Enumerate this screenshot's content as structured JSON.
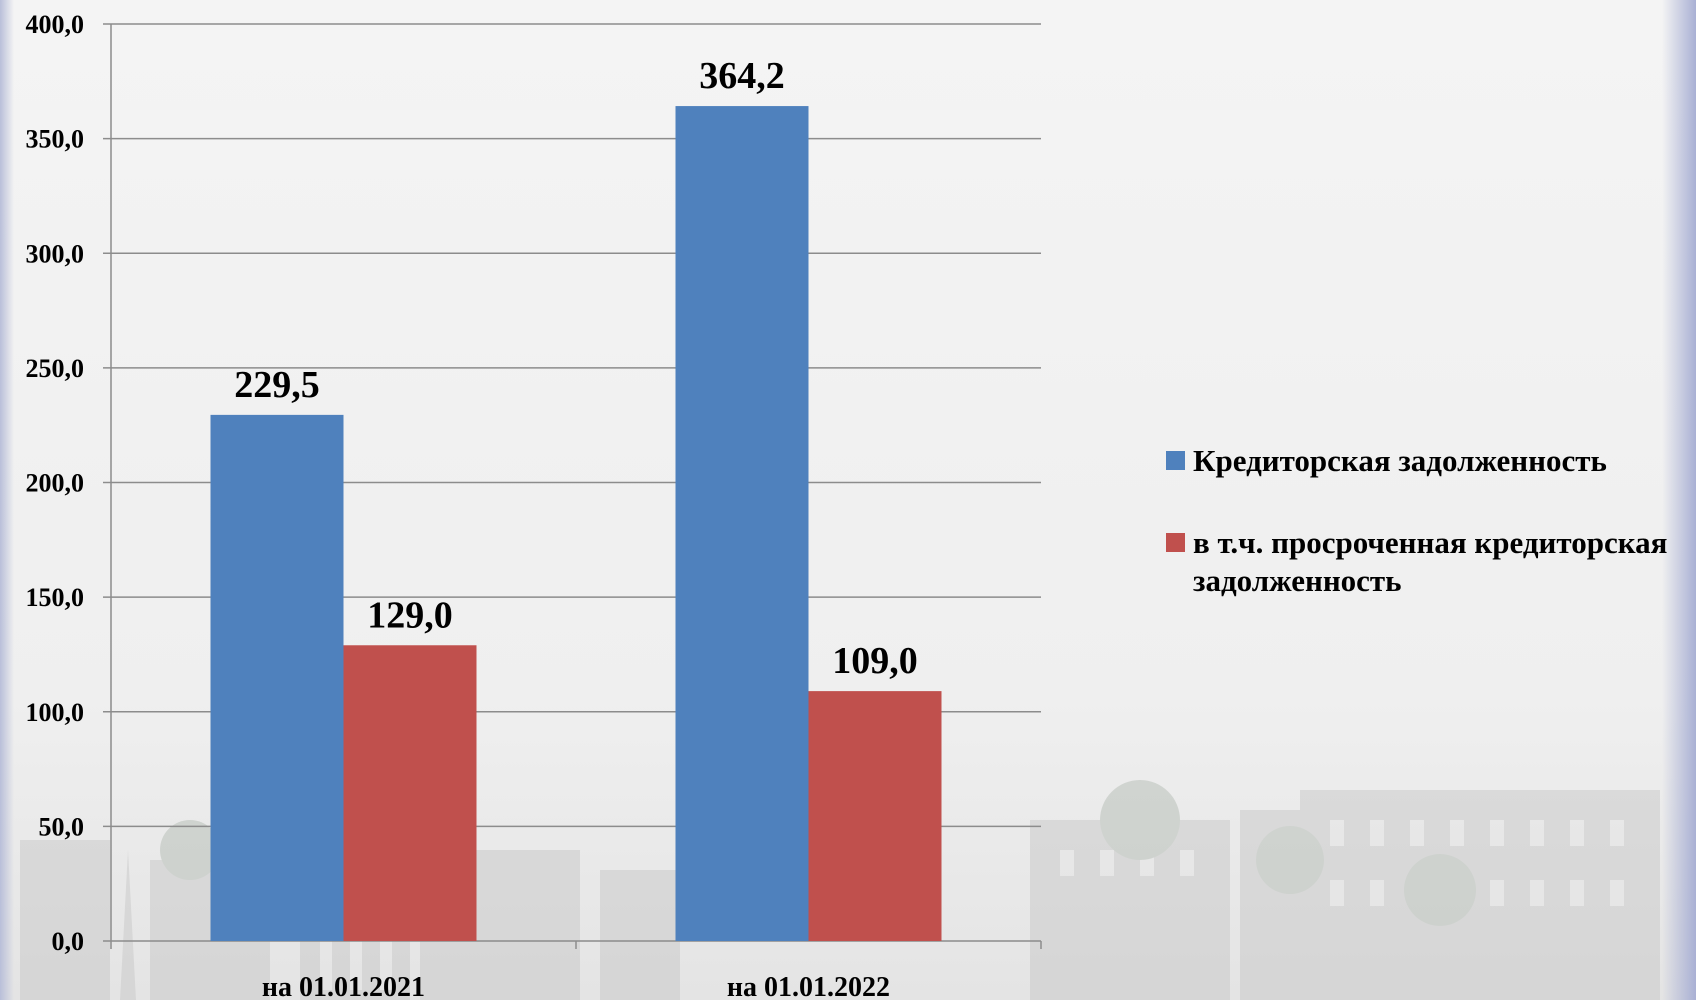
{
  "chart_data": {
    "type": "bar",
    "categories": [
      "на 01.01.2021",
      "на 01.01.2022"
    ],
    "series": [
      {
        "name": "Кредиторская задолженность",
        "values": [
          229.5,
          364.2
        ],
        "color": "#4F81BD",
        "labels": [
          "229,5",
          "364,2"
        ]
      },
      {
        "name": "в т.ч. просроченная кредиторская задолженность",
        "values": [
          129.0,
          109.0
        ],
        "color": "#C0504D",
        "labels": [
          "129,0",
          "109,0"
        ]
      }
    ],
    "ylim": [
      0,
      400
    ],
    "yticks": [
      0,
      50,
      100,
      150,
      200,
      250,
      300,
      350,
      400
    ],
    "ytick_labels": [
      "0,0",
      "50,0",
      "100,0",
      "150,0",
      "200,0",
      "250,0",
      "300,0",
      "350,0",
      "400,0"
    ],
    "grid": true,
    "legend_position": "right"
  }
}
